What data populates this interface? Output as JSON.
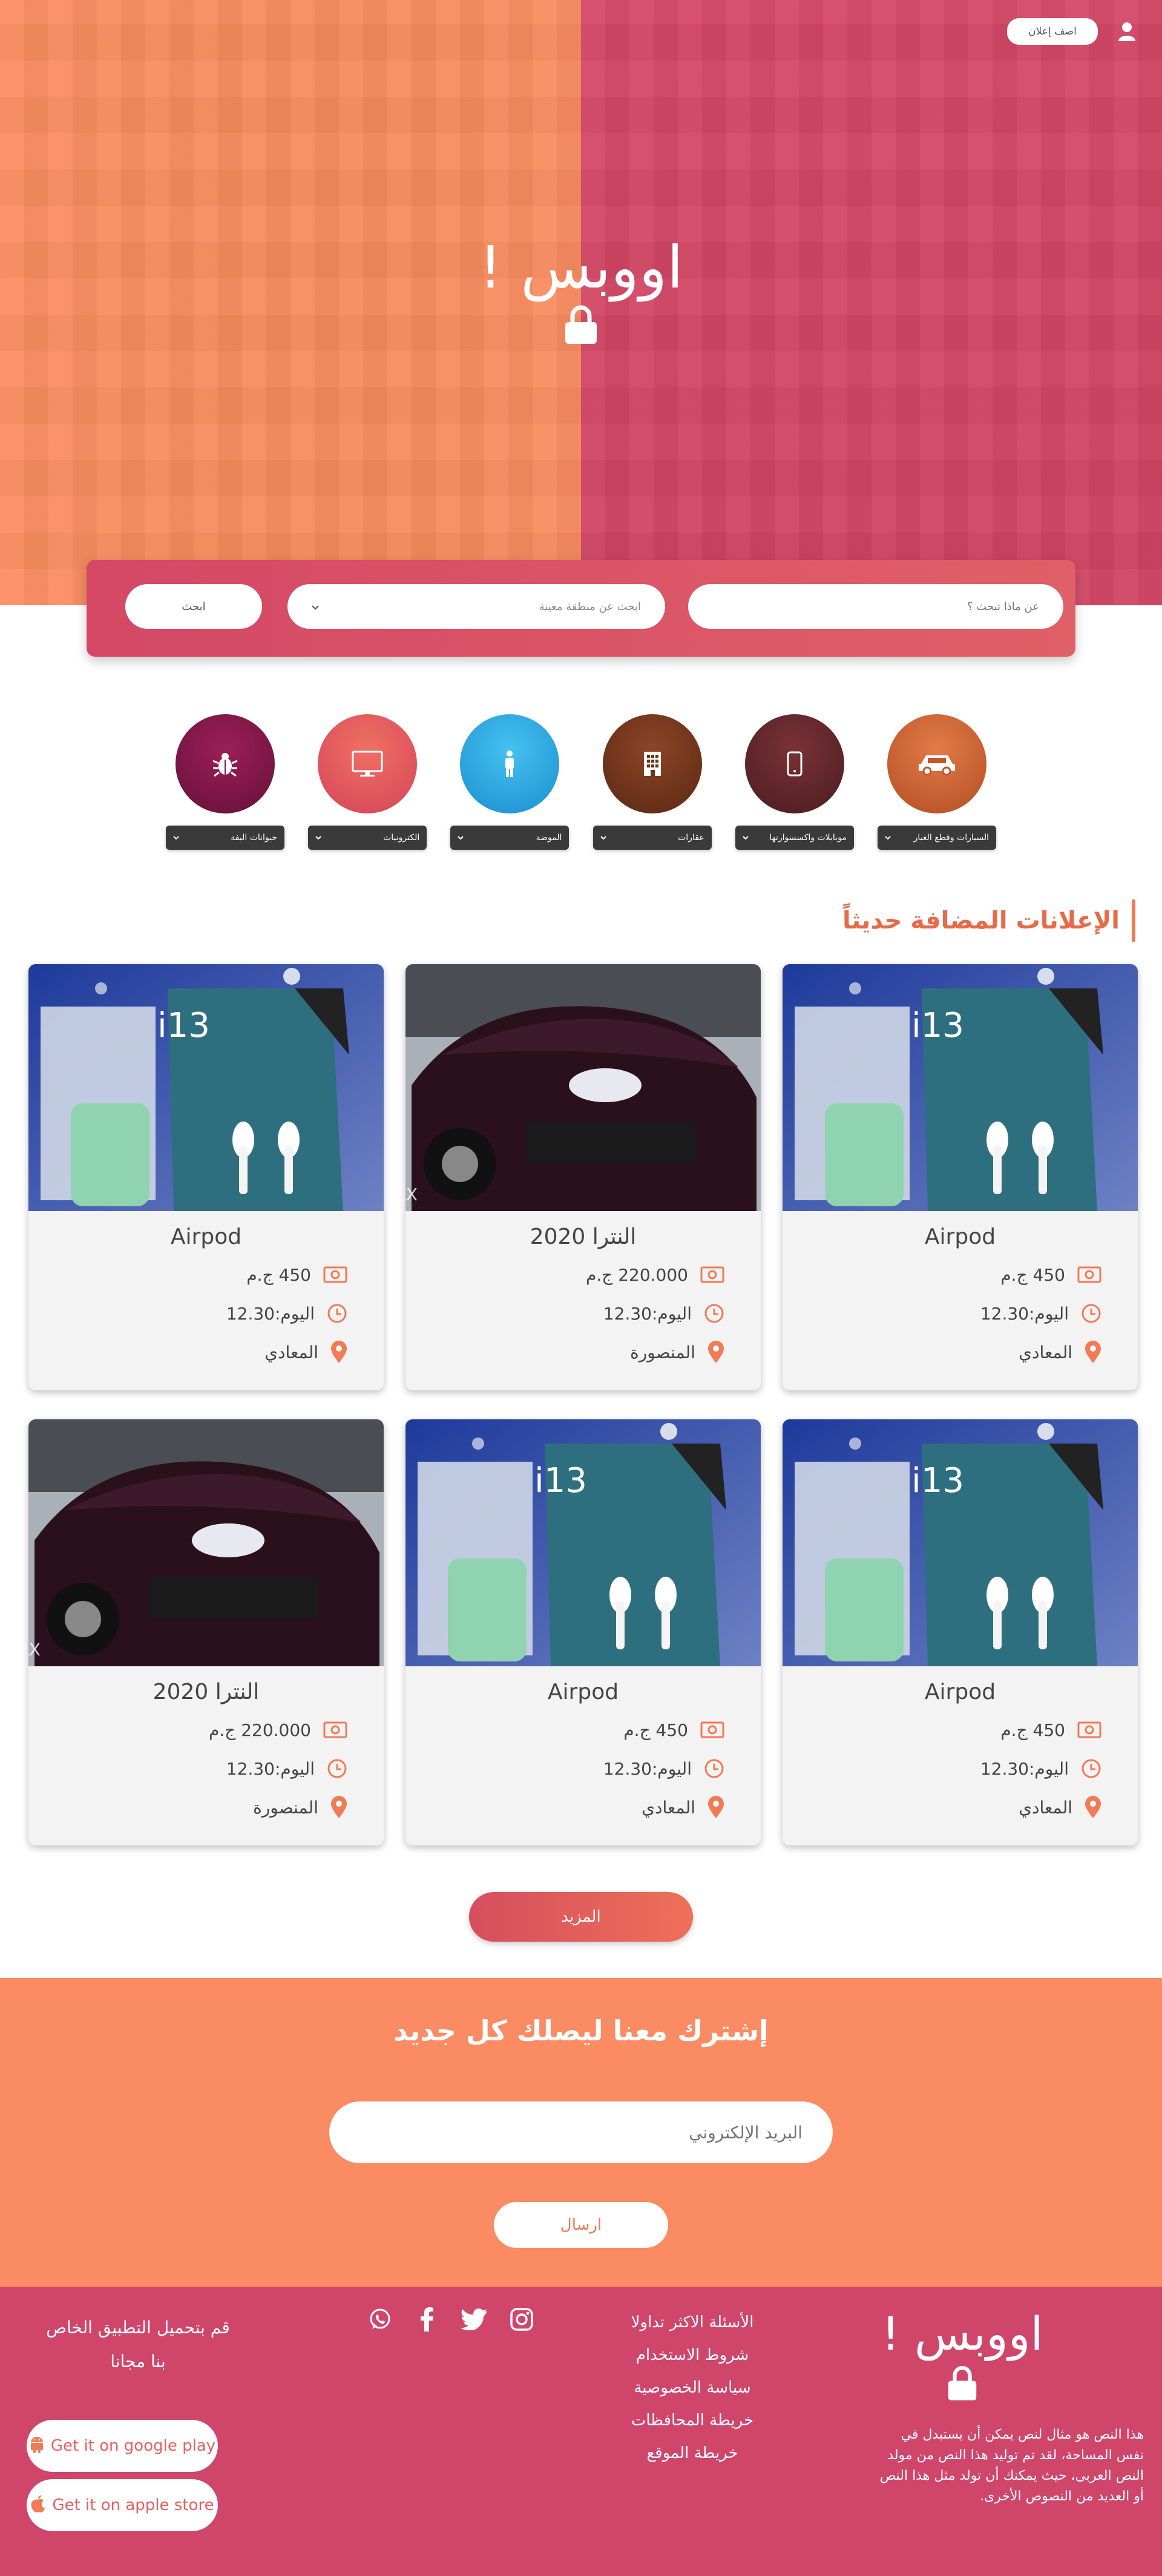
{
  "header": {
    "post_ad_label": "اضف إعلان",
    "logo_text": "اووبس !"
  },
  "search": {
    "query_placeholder": "عن ماذا تبحث ؟",
    "region_placeholder": "ابحث عن منطقة معينة",
    "search_label": "ابحث"
  },
  "categories": [
    {
      "label": "السيارات وقطع الغيار",
      "icon": "car-icon",
      "color": "#c0582b"
    },
    {
      "label": "موبايلات واكسسوارتها",
      "icon": "mobile-icon",
      "color": "#5a2427"
    },
    {
      "label": "عقارات",
      "icon": "building-icon",
      "color": "#6c3218"
    },
    {
      "label": "الموضة",
      "icon": "person-icon",
      "color": "#29a9e4"
    },
    {
      "label": "الكترونيات",
      "icon": "monitor-icon",
      "color": "#e24f5b"
    },
    {
      "label": "حيوانات اليفة",
      "icon": "bug-icon",
      "color": "#7c1747"
    }
  ],
  "latest": {
    "title": "الإعلانات المضافة حديثاً",
    "ads": [
      {
        "title": "Airpod",
        "price": "450 ج.م",
        "time": "اليوم:12.30",
        "location": "المعادي",
        "image": "airpods"
      },
      {
        "title": "النترا 2020",
        "price": "220.000 ج.م",
        "time": "اليوم:12.30",
        "location": "المنصورة",
        "image": "car"
      },
      {
        "title": "Airpod",
        "price": "450 ج.م",
        "time": "اليوم:12.30",
        "location": "المعادي",
        "image": "airpods"
      },
      {
        "title": "Airpod",
        "price": "450 ج.م",
        "time": "اليوم:12.30",
        "location": "المعادي",
        "image": "airpods"
      },
      {
        "title": "Airpod",
        "price": "450 ج.م",
        "time": "اليوم:12.30",
        "location": "المعادي",
        "image": "airpods"
      },
      {
        "title": "النترا 2020",
        "price": "220.000 ج.م",
        "time": "اليوم:12.30",
        "location": "المنصورة",
        "image": "car"
      }
    ],
    "more_label": "المزيد"
  },
  "newsletter": {
    "title": "إشترك معنا ليصلك كل جديد",
    "email_placeholder": "البريد الإلكتروني",
    "send_label": "ارسال"
  },
  "footer": {
    "logo_text": "اووبس !",
    "about": "هذا النص هو مثال لنص يمكن أن يستبدل في نفس المساحة، لقد تم توليد هذا النص من مولد النص العربى، حيث يمكنك أن تولد مثل هذا النص أو العديد من النصوص الأخرى.",
    "links": [
      "الأسئلة الاكثر تداولا",
      "شروط الاستخدام",
      "سياسة الخصوصية",
      "خريطة المحافظات",
      "خريطة الموقع"
    ],
    "app_line1": "قم بتحميل التطبيق الخاص",
    "app_line2": "بنا مجانا",
    "google_play": "Get it on google play",
    "apple_store": "Get it on apple store"
  },
  "colors": {
    "accent": "#f07b55",
    "brand_pink": "#d0456a",
    "brand_orange": "#fb8b62"
  }
}
